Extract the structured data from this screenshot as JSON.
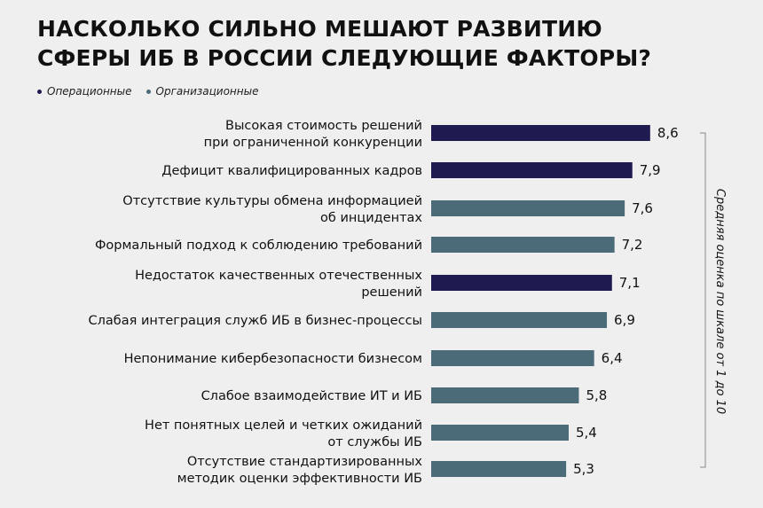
{
  "title_lines": [
    "НАСКОЛЬКО СИЛЬНО МЕШАЮТ РАЗВИТИЮ",
    "СФЕРЫ ИБ В РОССИИ СЛЕДУЮЩИЕ ФАКТОРЫ?"
  ],
  "legend": [
    {
      "name": "Операционные",
      "color": "#1f1a4f"
    },
    {
      "name": "Организационные",
      "color": "#4b6b78"
    }
  ],
  "chart_data": {
    "type": "bar",
    "orientation": "horizontal",
    "title": "НАСКОЛЬКО СИЛЬНО МЕШАЮТ РАЗВИТИЮ СФЕРЫ ИБ В РОССИИ СЛЕДУЮЩИЕ ФАКТОРЫ?",
    "axis_label": "Средняя оценка по шкале от 1 до 10",
    "xlim": [
      0,
      10
    ],
    "grid": false,
    "legend_position": "top-left",
    "categories": [
      [
        "Высокая стоимость решений",
        "при ограниченной конкуренции"
      ],
      [
        "Дефицит квалифицированных кадров"
      ],
      [
        "Отсутствие культуры обмена информацией",
        "об инцидентах"
      ],
      [
        "Формальный подход к соблюдению требований"
      ],
      [
        "Недостаток качественных отечественных",
        "решений"
      ],
      [
        "Слабая интеграция служб ИБ в бизнес-процессы"
      ],
      [
        "Непонимание кибербезопасности бизнесом"
      ],
      [
        "Слабое взаимодействие ИТ и ИБ"
      ],
      [
        "Нет понятных целей и четких ожиданий",
        "от службы ИБ"
      ],
      [
        "Отсутствие стандартизированных",
        "методик оценки эффективности ИБ"
      ]
    ],
    "values": [
      8.6,
      7.9,
      7.6,
      7.2,
      7.1,
      6.9,
      6.4,
      5.8,
      5.4,
      5.3
    ],
    "value_labels": [
      "8,6",
      "7,9",
      "7,6",
      "7,2",
      "7,1",
      "6,9",
      "6,4",
      "5,8",
      "5,4",
      "5,3"
    ],
    "groups": [
      "Операционные",
      "Операционные",
      "Организационные",
      "Организационные",
      "Операционные",
      "Организационные",
      "Организационные",
      "Организационные",
      "Организационные",
      "Организационные"
    ]
  }
}
